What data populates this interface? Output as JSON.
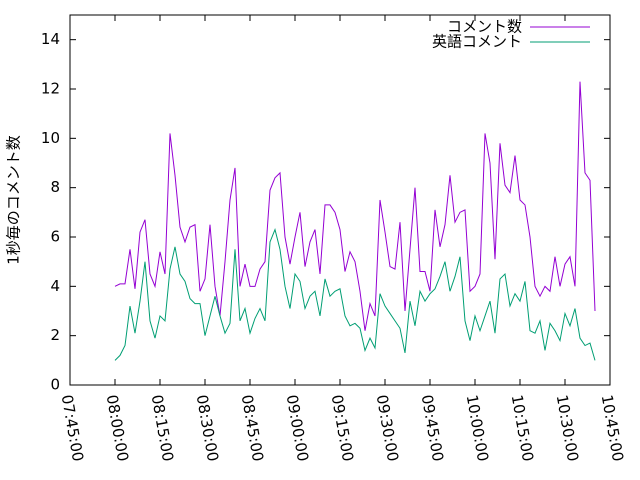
{
  "chart_data": {
    "type": "line",
    "ylabel": "1秒毎のコメント数",
    "x": [
      "08:00:00",
      "08:01:40",
      "08:03:20",
      "08:05:00",
      "08:06:40",
      "08:08:20",
      "08:10:00",
      "08:11:40",
      "08:13:20",
      "08:15:00",
      "08:16:40",
      "08:18:20",
      "08:20:00",
      "08:21:40",
      "08:23:20",
      "08:25:00",
      "08:26:40",
      "08:28:20",
      "08:30:00",
      "08:31:40",
      "08:33:20",
      "08:35:00",
      "08:36:40",
      "08:38:20",
      "08:40:00",
      "08:41:40",
      "08:43:20",
      "08:45:00",
      "08:46:40",
      "08:48:20",
      "08:50:00",
      "08:51:40",
      "08:53:20",
      "08:55:00",
      "08:56:40",
      "08:58:20",
      "09:00:00",
      "09:01:40",
      "09:03:20",
      "09:05:00",
      "09:06:40",
      "09:08:20",
      "09:10:00",
      "09:11:40",
      "09:13:20",
      "09:15:00",
      "09:16:40",
      "09:18:20",
      "09:20:00",
      "09:21:40",
      "09:23:20",
      "09:25:00",
      "09:26:40",
      "09:28:20",
      "09:30:00",
      "09:31:40",
      "09:33:20",
      "09:35:00",
      "09:36:40",
      "09:38:20",
      "09:40:00",
      "09:41:40",
      "09:43:20",
      "09:45:00",
      "09:46:40",
      "09:48:20",
      "09:50:00",
      "09:51:40",
      "09:53:20",
      "09:55:00",
      "09:56:40",
      "09:58:20",
      "10:00:00",
      "10:01:40",
      "10:03:20",
      "10:05:00",
      "10:06:40",
      "10:08:20",
      "10:10:00",
      "10:11:40",
      "10:13:20",
      "10:15:00",
      "10:16:40",
      "10:18:20",
      "10:20:00",
      "10:21:40",
      "10:23:20",
      "10:25:00",
      "10:26:40",
      "10:28:20",
      "10:30:00",
      "10:31:40",
      "10:33:20",
      "10:35:00",
      "10:36:40",
      "10:38:20",
      "10:40:00"
    ],
    "series": [
      {
        "name": "コメント数",
        "color": "#9400d3",
        "values": [
          4.0,
          4.1,
          4.1,
          5.5,
          3.9,
          6.2,
          6.7,
          4.5,
          4.0,
          5.4,
          4.5,
          10.2,
          8.5,
          6.4,
          5.8,
          6.4,
          6.5,
          3.8,
          4.3,
          6.5,
          4.0,
          2.8,
          5.0,
          7.5,
          8.8,
          4.0,
          4.9,
          4.0,
          4.0,
          4.7,
          5.0,
          7.9,
          8.4,
          8.6,
          6.0,
          4.9,
          6.0,
          7.0,
          4.8,
          5.8,
          6.3,
          4.5,
          7.3,
          7.3,
          7.0,
          6.3,
          4.6,
          5.4,
          5.0,
          3.8,
          2.2,
          3.3,
          2.8,
          7.5,
          6.2,
          4.8,
          4.7,
          6.6,
          3.0,
          5.5,
          8.0,
          4.6,
          4.6,
          3.8,
          7.1,
          5.6,
          6.5,
          8.5,
          6.6,
          7.0,
          7.1,
          3.8,
          4.0,
          4.5,
          10.2,
          9.0,
          5.1,
          9.8,
          8.1,
          7.8,
          9.3,
          7.5,
          7.3,
          6.0,
          4.0,
          3.6,
          4.0,
          3.8,
          5.2,
          4.0,
          4.9,
          5.2,
          4.0,
          12.3,
          8.6,
          8.3,
          3.0
        ]
      },
      {
        "name": "英語コメント",
        "color": "#009e73",
        "values": [
          1.0,
          1.2,
          1.6,
          3.2,
          2.1,
          3.4,
          5.0,
          2.6,
          1.9,
          2.8,
          2.6,
          4.7,
          5.6,
          4.5,
          4.2,
          3.5,
          3.3,
          3.3,
          2.0,
          2.8,
          3.6,
          2.8,
          2.1,
          2.5,
          5.5,
          2.6,
          3.1,
          2.1,
          2.7,
          3.1,
          2.6,
          5.8,
          6.3,
          5.5,
          4.0,
          3.1,
          4.5,
          4.2,
          3.1,
          3.6,
          3.8,
          2.8,
          4.3,
          3.6,
          3.8,
          3.9,
          2.8,
          2.4,
          2.5,
          2.3,
          1.4,
          1.9,
          1.5,
          3.7,
          3.2,
          2.9,
          2.6,
          2.3,
          1.3,
          3.4,
          2.4,
          3.8,
          3.4,
          3.7,
          3.9,
          4.4,
          5.0,
          3.8,
          4.4,
          5.2,
          2.6,
          1.8,
          2.8,
          2.2,
          2.8,
          3.4,
          2.1,
          4.3,
          4.5,
          3.2,
          3.7,
          3.4,
          4.2,
          2.2,
          2.1,
          2.6,
          1.4,
          2.5,
          2.2,
          1.8,
          2.9,
          2.4,
          3.1,
          1.9,
          1.6,
          1.7,
          1.0
        ]
      }
    ],
    "xlim": [
      "07:45:00",
      "10:45:00"
    ],
    "xticks": [
      "07:45:00",
      "08:00:00",
      "08:15:00",
      "08:30:00",
      "08:45:00",
      "09:00:00",
      "09:15:00",
      "09:30:00",
      "09:45:00",
      "10:00:00",
      "10:15:00",
      "10:30:00",
      "10:45:00"
    ],
    "ylim": [
      0,
      15
    ],
    "yticks": [
      0,
      2,
      4,
      6,
      8,
      10,
      12,
      14
    ],
    "legend": "top-right"
  }
}
